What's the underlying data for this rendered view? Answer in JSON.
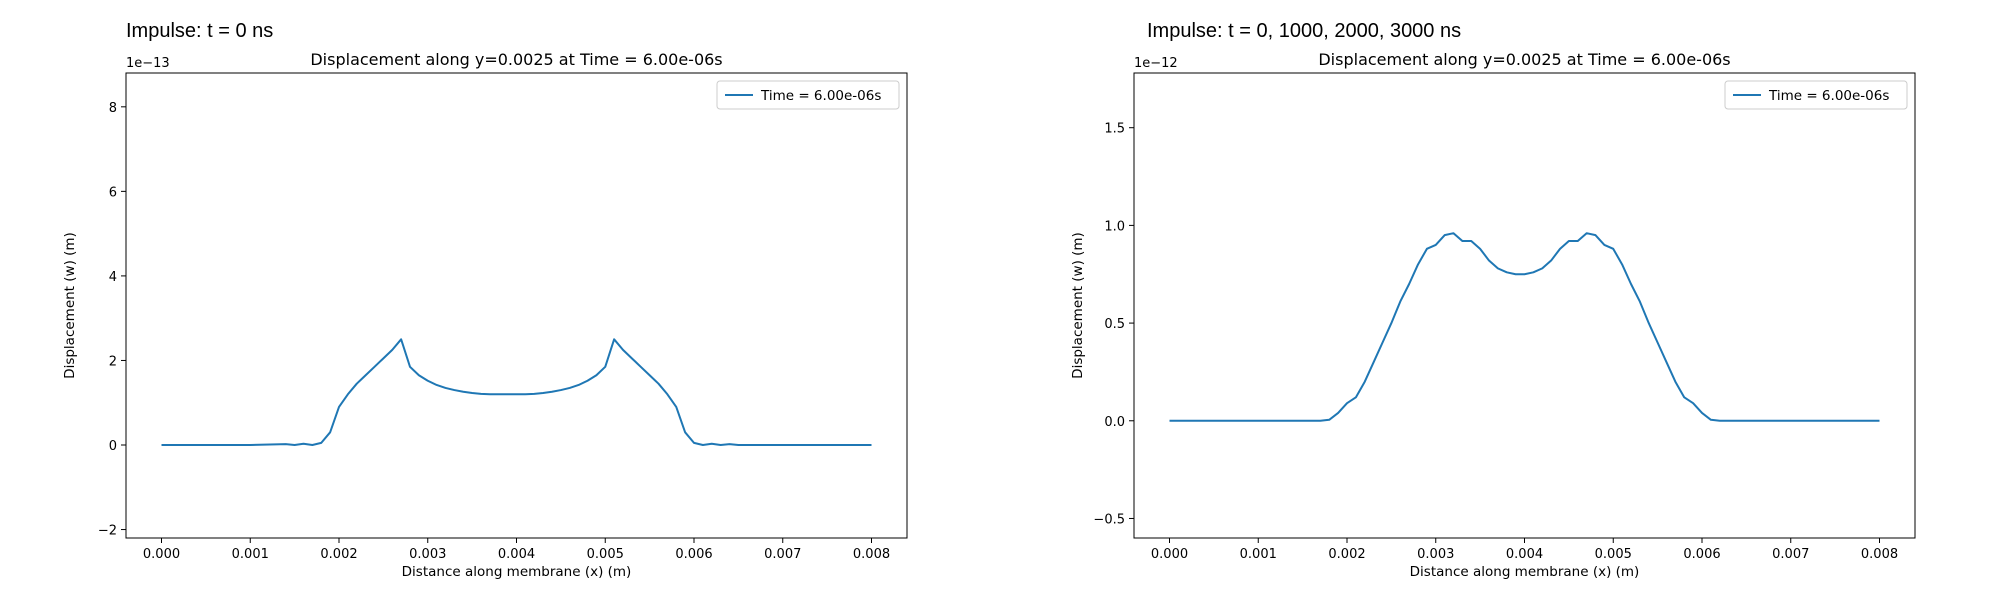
{
  "figure": {
    "suptitles": [
      "Impulse: t = 0 ns",
      "Impulse: t = 0, 1000, 2000, 3000 ns"
    ]
  },
  "chart_data": [
    {
      "type": "line",
      "title": "Displacement along y=0.0025 at Time = 6.00e-06s",
      "xlabel": "Distance along membrane (x) (m)",
      "ylabel": "Displacement (w) (m)",
      "offset_label": "1e−13",
      "xlim": [
        -0.0004,
        0.0084
      ],
      "ylim": [
        -2.2,
        8.8
      ],
      "xticks": [
        0.0,
        0.001,
        0.002,
        0.003,
        0.004,
        0.005,
        0.006,
        0.007,
        0.008
      ],
      "xtick_labels": [
        "0.000",
        "0.001",
        "0.002",
        "0.003",
        "0.004",
        "0.005",
        "0.006",
        "0.007",
        "0.008"
      ],
      "yticks": [
        -2,
        0,
        2,
        4,
        6,
        8
      ],
      "ytick_labels": [
        "−2",
        "0",
        "2",
        "4",
        "6",
        "8"
      ],
      "grid": false,
      "legend_position": "upper-right",
      "color": "#1f77b4",
      "series": [
        {
          "name": "Time = 6.00e-06s",
          "x": [
            0.0,
            0.0005,
            0.001,
            0.0014,
            0.0015,
            0.0016,
            0.0017,
            0.0018,
            0.0019,
            0.002,
            0.0021,
            0.0022,
            0.0023,
            0.0024,
            0.0025,
            0.0026,
            0.0027,
            0.0028,
            0.0029,
            0.003,
            0.0031,
            0.0032,
            0.0033,
            0.0034,
            0.0035,
            0.0036,
            0.0037,
            0.0038,
            0.0039,
            0.004,
            0.0041,
            0.0042,
            0.0043,
            0.0044,
            0.0045,
            0.0046,
            0.0047,
            0.0048,
            0.0049,
            0.005,
            0.0051,
            0.0052,
            0.0053,
            0.0054,
            0.0055,
            0.0056,
            0.0057,
            0.0058,
            0.0059,
            0.006,
            0.0061,
            0.0062,
            0.0063,
            0.0064,
            0.0065,
            0.0066,
            0.007,
            0.0075,
            0.008
          ],
          "y": [
            0.0,
            0.0,
            0.0,
            0.02,
            0.0,
            0.03,
            0.0,
            0.05,
            0.3,
            0.9,
            1.2,
            1.45,
            1.65,
            1.85,
            2.05,
            2.25,
            2.5,
            1.85,
            1.65,
            1.52,
            1.42,
            1.35,
            1.3,
            1.26,
            1.23,
            1.21,
            1.2,
            1.2,
            1.2,
            1.2,
            1.2,
            1.21,
            1.23,
            1.26,
            1.3,
            1.35,
            1.42,
            1.52,
            1.65,
            1.85,
            2.5,
            2.25,
            2.05,
            1.85,
            1.65,
            1.45,
            1.2,
            0.9,
            0.3,
            0.05,
            0.0,
            0.03,
            0.0,
            0.02,
            0.0,
            0.0,
            0.0,
            0.0,
            0.0
          ]
        }
      ]
    },
    {
      "type": "line",
      "title": "Displacement along y=0.0025 at Time = 6.00e-06s",
      "xlabel": "Distance along membrane (x) (m)",
      "ylabel": "Displacement (w) (m)",
      "offset_label": "1e−12",
      "xlim": [
        -0.0004,
        0.0084
      ],
      "ylim": [
        -0.6,
        1.78
      ],
      "xticks": [
        0.0,
        0.001,
        0.002,
        0.003,
        0.004,
        0.005,
        0.006,
        0.007,
        0.008
      ],
      "xtick_labels": [
        "0.000",
        "0.001",
        "0.002",
        "0.003",
        "0.004",
        "0.005",
        "0.006",
        "0.007",
        "0.008"
      ],
      "yticks": [
        -0.5,
        0.0,
        0.5,
        1.0,
        1.5
      ],
      "ytick_labels": [
        "−0.5",
        "0.0",
        "0.5",
        "1.0",
        "1.5"
      ],
      "grid": false,
      "legend_position": "upper-right",
      "color": "#1f77b4",
      "series": [
        {
          "name": "Time = 6.00e-06s",
          "x": [
            0.0,
            0.0005,
            0.001,
            0.0014,
            0.0015,
            0.0016,
            0.0017,
            0.0018,
            0.0019,
            0.002,
            0.0021,
            0.0022,
            0.0023,
            0.0024,
            0.0025,
            0.0026,
            0.0027,
            0.0028,
            0.0029,
            0.003,
            0.0031,
            0.0032,
            0.0033,
            0.0034,
            0.0035,
            0.0036,
            0.0037,
            0.0038,
            0.0039,
            0.004,
            0.0041,
            0.0042,
            0.0043,
            0.0044,
            0.0045,
            0.0046,
            0.0047,
            0.0048,
            0.0049,
            0.005,
            0.0051,
            0.0052,
            0.0053,
            0.0054,
            0.0055,
            0.0056,
            0.0057,
            0.0058,
            0.0059,
            0.006,
            0.0061,
            0.0062,
            0.0063,
            0.0064,
            0.0065,
            0.0066,
            0.007,
            0.0075,
            0.008
          ],
          "y": [
            0.0,
            0.0,
            0.0,
            0.0,
            0.0,
            0.0,
            0.0,
            0.005,
            0.04,
            0.09,
            0.12,
            0.2,
            0.3,
            0.4,
            0.5,
            0.61,
            0.7,
            0.8,
            0.88,
            0.9,
            0.95,
            0.96,
            0.92,
            0.92,
            0.88,
            0.82,
            0.78,
            0.76,
            0.75,
            0.75,
            0.76,
            0.78,
            0.82,
            0.88,
            0.92,
            0.92,
            0.96,
            0.95,
            0.9,
            0.88,
            0.8,
            0.7,
            0.61,
            0.5,
            0.4,
            0.3,
            0.2,
            0.12,
            0.09,
            0.04,
            0.005,
            0.0,
            0.0,
            0.0,
            0.0,
            0.0,
            0.0,
            0.0,
            0.0
          ]
        }
      ]
    }
  ]
}
